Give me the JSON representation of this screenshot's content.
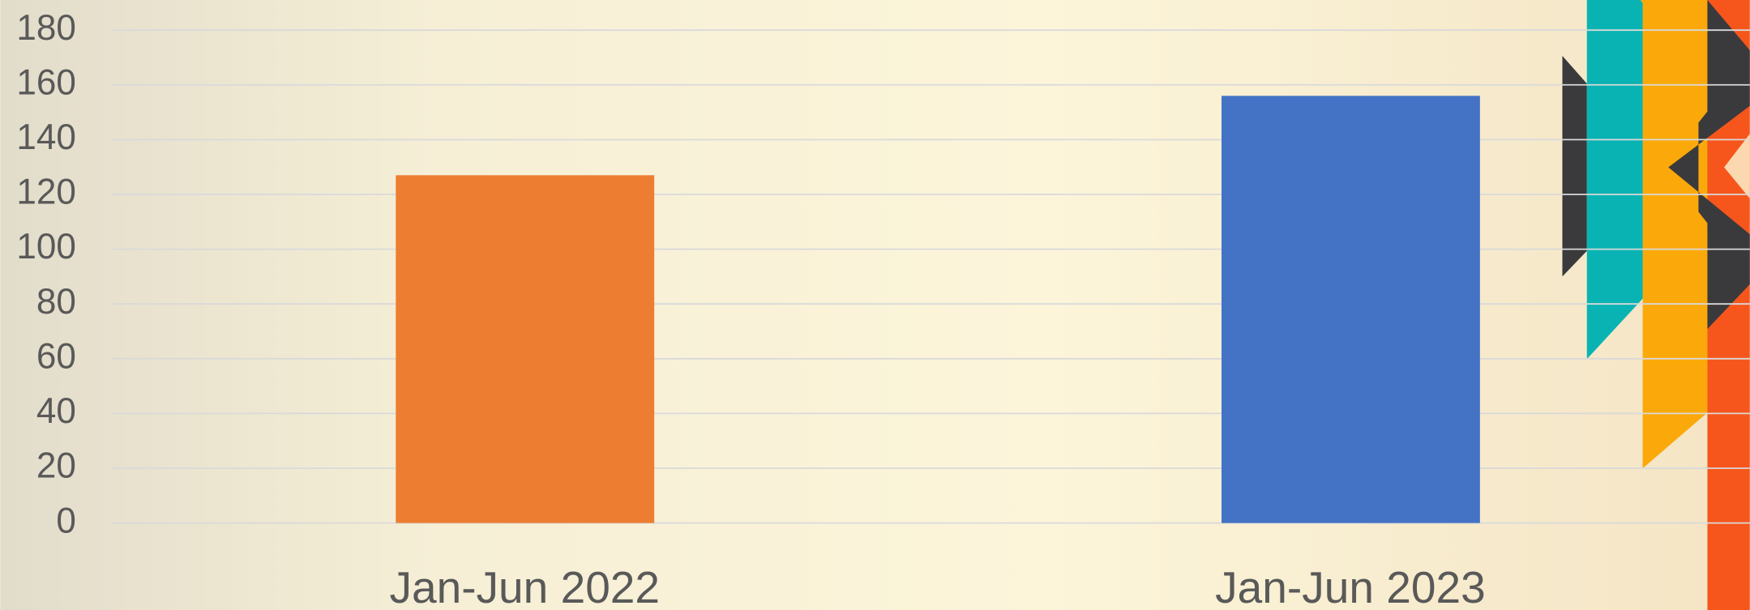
{
  "chart_data": {
    "type": "bar",
    "categories": [
      "Jan-Jun 2022",
      "Jan-Jun 2023"
    ],
    "values": [
      127,
      156
    ],
    "colors": [
      "#ed7d31",
      "#4472c4"
    ],
    "ylim": [
      0,
      180
    ],
    "yticks": [
      0,
      20,
      40,
      60,
      80,
      100,
      120,
      140,
      160,
      180
    ],
    "grid": true
  }
}
